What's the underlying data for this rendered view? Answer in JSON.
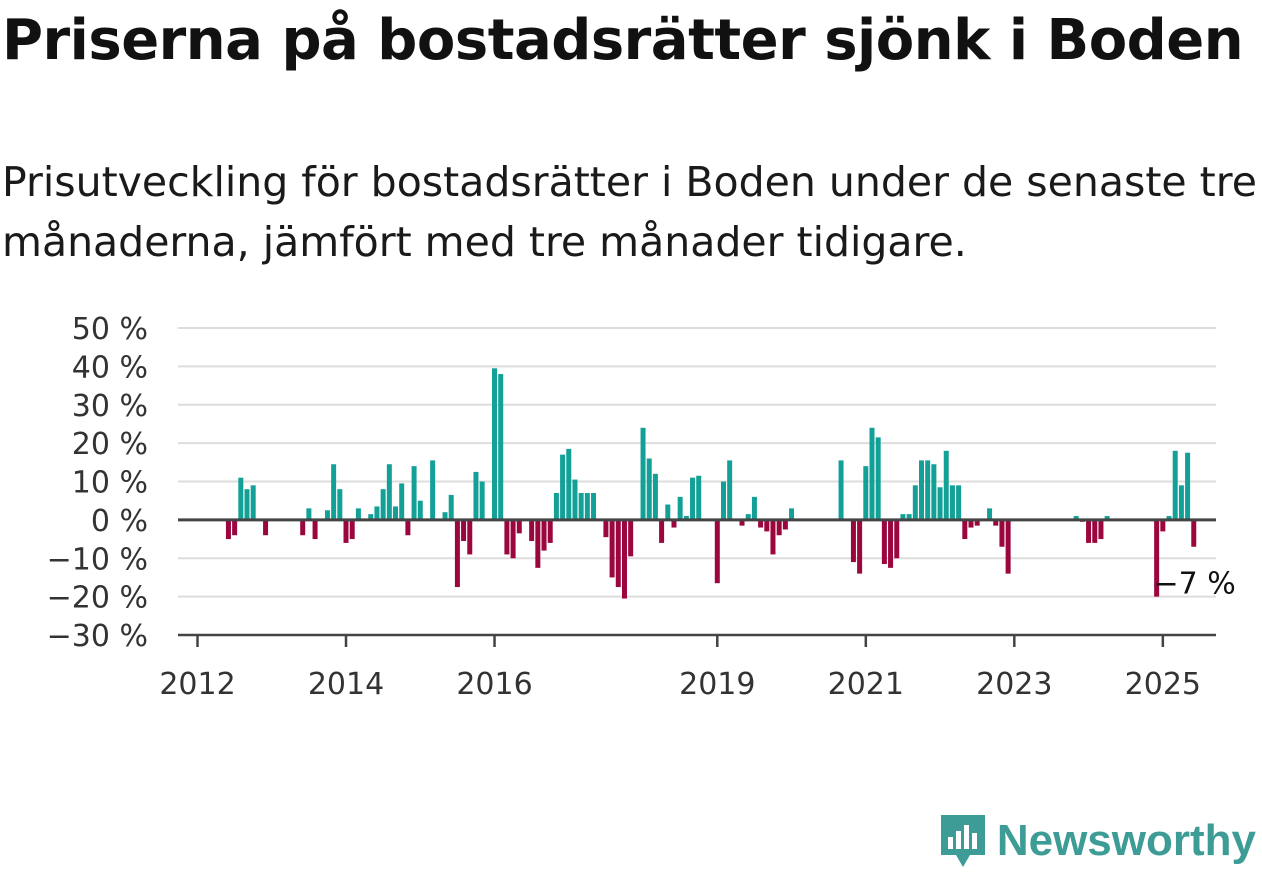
{
  "title": "Priserna på bostadsrätter sjönk i Boden",
  "subtitle": "Prisutveckling för bostadsrätter i Boden under de senaste tre månaderna, jämfört med tre månader tidigare.",
  "brand": {
    "name": "Newsworthy",
    "color": "#3e9c96",
    "icon": "newsworthy-logo-icon"
  },
  "colors": {
    "positive": "#13a197",
    "negative": "#9b063e",
    "grid": "#dddddd",
    "axis": "#444444"
  },
  "chart_data": {
    "type": "bar",
    "x_start": "2012-01",
    "ylim": [
      -30,
      50
    ],
    "yticks": [
      -30,
      -20,
      -10,
      0,
      10,
      20,
      30,
      40,
      50
    ],
    "ytick_labels": [
      "−30 %",
      "−20 %",
      "−10 %",
      "0 %",
      "10 %",
      "20 %",
      "30 %",
      "40 %",
      "50 %"
    ],
    "xticks": [
      {
        "label": "2012",
        "month": 0
      },
      {
        "label": "2014",
        "month": 24
      },
      {
        "label": "2016",
        "month": 48
      },
      {
        "label": "2019",
        "month": 84
      },
      {
        "label": "2021",
        "month": 108
      },
      {
        "label": "2023",
        "month": 132
      },
      {
        "label": "2025",
        "month": 156
      }
    ],
    "annotation": "−7 %",
    "last_value": -7,
    "values": [
      null,
      null,
      null,
      null,
      null,
      -5,
      -4,
      11,
      8,
      9,
      null,
      -4,
      null,
      null,
      null,
      null,
      null,
      -4,
      3,
      -5,
      null,
      2.5,
      14.5,
      8,
      -6,
      -5,
      3,
      null,
      1.5,
      3.5,
      8,
      14.5,
      3.5,
      9.5,
      -4,
      14,
      5,
      null,
      15.5,
      null,
      2,
      6.5,
      -17.5,
      -5.5,
      -9,
      12.5,
      10,
      null,
      39.5,
      38,
      -9,
      -10,
      -3.5,
      null,
      -5.5,
      -12.5,
      -8,
      -6,
      7,
      17,
      18.5,
      10.5,
      7,
      7,
      7,
      null,
      -4.5,
      -15,
      -17.5,
      -20.5,
      -9.5,
      null,
      24,
      16,
      12,
      -6,
      4,
      -2,
      6,
      1,
      11,
      11.5,
      null,
      null,
      -16.5,
      10,
      15.5,
      null,
      -1.5,
      1.5,
      6,
      -2,
      -3,
      -9,
      -4,
      -2.5,
      3,
      null,
      null,
      null,
      null,
      null,
      null,
      null,
      15.5,
      null,
      -11,
      -14,
      14,
      24,
      21.5,
      -11.5,
      -12.5,
      -10,
      1.5,
      1.5,
      9,
      15.5,
      15.5,
      14.5,
      8.5,
      18,
      9,
      9,
      -5,
      -2,
      -1.5,
      null,
      3,
      -1.5,
      -7,
      -14,
      null,
      null,
      null,
      null,
      null,
      null,
      null,
      null,
      null,
      null,
      1,
      -0.5,
      -6,
      -6,
      -5,
      1,
      null,
      null,
      null,
      null,
      null,
      null,
      null,
      -20,
      -3,
      1,
      18,
      9,
      17.5,
      -7
    ]
  }
}
